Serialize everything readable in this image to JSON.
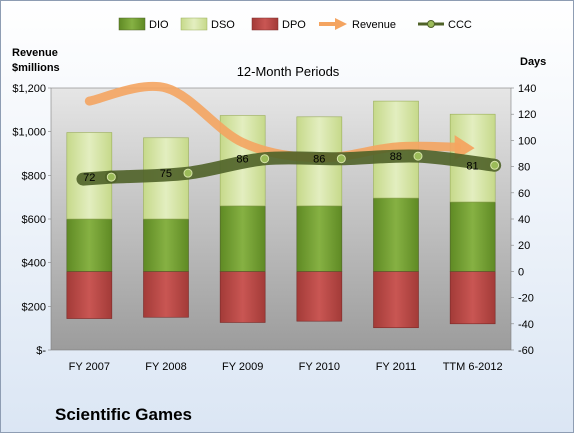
{
  "chart_data": {
    "type": "bar",
    "subtitle": "12-Month Periods",
    "company": "Scientific Games",
    "left_axis_title_line1": "Revenue",
    "left_axis_title_line2": "$millions",
    "right_axis_title": "Days",
    "categories": [
      "FY 2007",
      "FY 2008",
      "FY 2009",
      "FY 2010",
      "FY 2011",
      "TTM 6-2012"
    ],
    "left_axis": {
      "min": 0,
      "max": 1200,
      "step": 200,
      "tick_labels": [
        "$-",
        "$200",
        "$400",
        "$600",
        "$800",
        "$1,000",
        "$1,200"
      ]
    },
    "right_axis": {
      "min": -60,
      "max": 140,
      "step": 20,
      "tick_labels": [
        "-60",
        "-40",
        "-20",
        "0",
        "20",
        "40",
        "60",
        "80",
        "100",
        "120",
        "140"
      ]
    },
    "series": [
      {
        "name": "DIO",
        "axis": "days",
        "kind": "stacked-bar",
        "values": [
          40,
          40,
          50,
          50,
          56,
          53
        ]
      },
      {
        "name": "DSO",
        "axis": "days",
        "kind": "stacked-bar",
        "values": [
          66,
          62,
          69,
          68,
          74,
          67
        ]
      },
      {
        "name": "DPO",
        "axis": "days",
        "kind": "negative-bar",
        "values": [
          -36,
          -35,
          -39,
          -38,
          -43,
          -40
        ]
      },
      {
        "name": "Revenue",
        "axis": "revenue",
        "kind": "line",
        "values": [
          1140,
          1200,
          950,
          880,
          930,
          920
        ]
      },
      {
        "name": "CCC",
        "axis": "days",
        "kind": "line",
        "values": [
          72,
          75,
          86,
          86,
          88,
          81
        ]
      }
    ],
    "ccc_labels": [
      "72",
      "75",
      "86",
      "86",
      "88",
      "81"
    ],
    "colors": {
      "DIO": "#77a033",
      "DSO": "#d7e4a8",
      "DPO": "#c0504d",
      "Revenue": "#f4a460",
      "CCC": "#4f6228",
      "plot_background": "#bfbfbf"
    },
    "legend_position": "top"
  }
}
